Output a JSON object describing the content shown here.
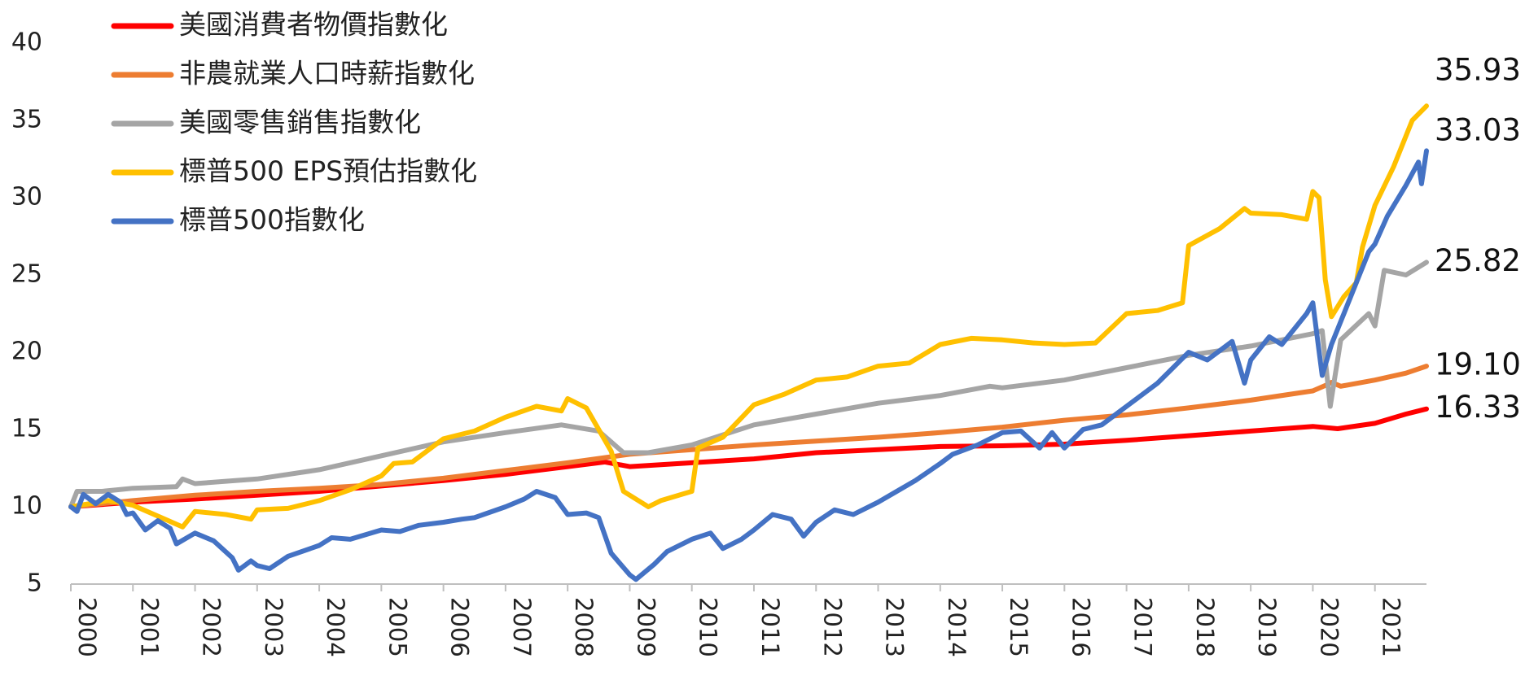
{
  "chart_data": {
    "type": "line",
    "title": "",
    "xlabel": "",
    "ylabel": "",
    "ylim": [
      5,
      40
    ],
    "y_ticks": [
      "5",
      "10",
      "15",
      "20",
      "25",
      "30",
      "35",
      "40"
    ],
    "x_ticks": [
      "2000",
      "2001",
      "2002",
      "2003",
      "2004",
      "2005",
      "2006",
      "2007",
      "2008",
      "2009",
      "2010",
      "2011",
      "2012",
      "2013",
      "2014",
      "2015",
      "2016",
      "2017",
      "2018",
      "2019",
      "2020",
      "2021"
    ],
    "grid": false,
    "legend_position": "top-left",
    "series": [
      {
        "name": "美國消費者物價指數化",
        "color": "#ff0000",
        "end_label": "16.33",
        "points": [
          [
            2000.0,
            10.0
          ],
          [
            2001.0,
            10.3
          ],
          [
            2002.0,
            10.5
          ],
          [
            2003.0,
            10.75
          ],
          [
            2004.0,
            11.0
          ],
          [
            2005.0,
            11.35
          ],
          [
            2006.0,
            11.7
          ],
          [
            2007.0,
            12.1
          ],
          [
            2008.0,
            12.6
          ],
          [
            2008.6,
            12.9
          ],
          [
            2009.0,
            12.6
          ],
          [
            2010.0,
            12.85
          ],
          [
            2011.0,
            13.1
          ],
          [
            2012.0,
            13.5
          ],
          [
            2013.0,
            13.7
          ],
          [
            2014.0,
            13.9
          ],
          [
            2015.0,
            13.95
          ],
          [
            2016.0,
            14.05
          ],
          [
            2017.0,
            14.3
          ],
          [
            2018.0,
            14.6
          ],
          [
            2019.0,
            14.9
          ],
          [
            2020.0,
            15.2
          ],
          [
            2020.4,
            15.05
          ],
          [
            2021.0,
            15.4
          ],
          [
            2021.5,
            16.0
          ],
          [
            2021.83,
            16.33
          ]
        ]
      },
      {
        "name": "非農就業人口時薪指數化",
        "color": "#ed7d31",
        "end_label": "19.10",
        "points": [
          [
            2000.0,
            10.0
          ],
          [
            2001.0,
            10.4
          ],
          [
            2002.0,
            10.75
          ],
          [
            2003.0,
            11.0
          ],
          [
            2004.0,
            11.2
          ],
          [
            2005.0,
            11.45
          ],
          [
            2006.0,
            11.85
          ],
          [
            2007.0,
            12.35
          ],
          [
            2008.0,
            12.85
          ],
          [
            2009.0,
            13.4
          ],
          [
            2010.0,
            13.7
          ],
          [
            2011.0,
            14.0
          ],
          [
            2012.0,
            14.25
          ],
          [
            2013.0,
            14.5
          ],
          [
            2014.0,
            14.8
          ],
          [
            2015.0,
            15.15
          ],
          [
            2016.0,
            15.6
          ],
          [
            2017.0,
            15.95
          ],
          [
            2018.0,
            16.4
          ],
          [
            2019.0,
            16.9
          ],
          [
            2020.0,
            17.5
          ],
          [
            2020.2,
            17.85
          ],
          [
            2020.3,
            18.05
          ],
          [
            2020.45,
            17.8
          ],
          [
            2021.0,
            18.2
          ],
          [
            2021.5,
            18.65
          ],
          [
            2021.83,
            19.1
          ]
        ]
      },
      {
        "name": "美國零售銷售指數化",
        "color": "#a5a5a5",
        "end_label": "25.82",
        "points": [
          [
            2000.0,
            10.0
          ],
          [
            2000.1,
            11.0
          ],
          [
            2000.5,
            11.0
          ],
          [
            2001.0,
            11.2
          ],
          [
            2001.7,
            11.3
          ],
          [
            2001.8,
            11.8
          ],
          [
            2002.0,
            11.5
          ],
          [
            2003.0,
            11.8
          ],
          [
            2004.0,
            12.4
          ],
          [
            2005.0,
            13.3
          ],
          [
            2006.0,
            14.2
          ],
          [
            2007.0,
            14.8
          ],
          [
            2007.9,
            15.3
          ],
          [
            2008.5,
            14.9
          ],
          [
            2008.9,
            13.5
          ],
          [
            2009.3,
            13.5
          ],
          [
            2010.0,
            14.0
          ],
          [
            2011.0,
            15.3
          ],
          [
            2012.0,
            16.0
          ],
          [
            2013.0,
            16.7
          ],
          [
            2014.0,
            17.2
          ],
          [
            2014.8,
            17.8
          ],
          [
            2015.0,
            17.7
          ],
          [
            2016.0,
            18.2
          ],
          [
            2017.0,
            19.0
          ],
          [
            2018.0,
            19.8
          ],
          [
            2019.0,
            20.4
          ],
          [
            2020.0,
            21.2
          ],
          [
            2020.15,
            21.4
          ],
          [
            2020.28,
            16.5
          ],
          [
            2020.45,
            20.8
          ],
          [
            2020.9,
            22.5
          ],
          [
            2021.0,
            21.7
          ],
          [
            2021.15,
            25.3
          ],
          [
            2021.5,
            25.0
          ],
          [
            2021.83,
            25.82
          ]
        ]
      },
      {
        "name": "標普500 EPS預估指數化",
        "color": "#ffc000",
        "end_label": "35.93",
        "points": [
          [
            2000.0,
            10.0
          ],
          [
            2000.6,
            10.4
          ],
          [
            2001.0,
            10.1
          ],
          [
            2001.8,
            8.7
          ],
          [
            2002.0,
            9.7
          ],
          [
            2002.5,
            9.5
          ],
          [
            2002.9,
            9.2
          ],
          [
            2003.0,
            9.8
          ],
          [
            2003.5,
            9.9
          ],
          [
            2004.0,
            10.4
          ],
          [
            2004.5,
            11.1
          ],
          [
            2005.0,
            12.0
          ],
          [
            2005.2,
            12.8
          ],
          [
            2005.5,
            12.9
          ],
          [
            2006.0,
            14.4
          ],
          [
            2006.5,
            14.9
          ],
          [
            2007.0,
            15.8
          ],
          [
            2007.5,
            16.5
          ],
          [
            2007.9,
            16.2
          ],
          [
            2008.0,
            17.0
          ],
          [
            2008.3,
            16.4
          ],
          [
            2008.7,
            13.6
          ],
          [
            2008.9,
            11.0
          ],
          [
            2009.3,
            10.0
          ],
          [
            2009.5,
            10.4
          ],
          [
            2010.0,
            11.0
          ],
          [
            2010.1,
            13.8
          ],
          [
            2010.5,
            14.5
          ],
          [
            2011.0,
            16.6
          ],
          [
            2011.5,
            17.3
          ],
          [
            2012.0,
            18.2
          ],
          [
            2012.5,
            18.4
          ],
          [
            2013.0,
            19.1
          ],
          [
            2013.5,
            19.3
          ],
          [
            2014.0,
            20.5
          ],
          [
            2014.5,
            20.9
          ],
          [
            2015.0,
            20.8
          ],
          [
            2015.5,
            20.6
          ],
          [
            2016.0,
            20.5
          ],
          [
            2016.5,
            20.6
          ],
          [
            2017.0,
            22.5
          ],
          [
            2017.5,
            22.7
          ],
          [
            2017.9,
            23.2
          ],
          [
            2018.0,
            26.9
          ],
          [
            2018.5,
            28.0
          ],
          [
            2018.9,
            29.3
          ],
          [
            2019.0,
            29.0
          ],
          [
            2019.5,
            28.9
          ],
          [
            2019.9,
            28.6
          ],
          [
            2020.0,
            30.4
          ],
          [
            2020.1,
            30.0
          ],
          [
            2020.2,
            24.7
          ],
          [
            2020.3,
            22.3
          ],
          [
            2020.5,
            23.6
          ],
          [
            2020.7,
            24.5
          ],
          [
            2020.8,
            26.8
          ],
          [
            2021.0,
            29.5
          ],
          [
            2021.3,
            32.0
          ],
          [
            2021.6,
            35.0
          ],
          [
            2021.83,
            35.93
          ]
        ]
      },
      {
        "name": "標普500指數化",
        "color": "#4472c4",
        "end_label": "33.03",
        "points": [
          [
            2000.0,
            10.0
          ],
          [
            2000.1,
            9.7
          ],
          [
            2000.2,
            10.8
          ],
          [
            2000.4,
            10.2
          ],
          [
            2000.6,
            10.8
          ],
          [
            2000.8,
            10.3
          ],
          [
            2000.9,
            9.5
          ],
          [
            2001.0,
            9.6
          ],
          [
            2001.2,
            8.5
          ],
          [
            2001.4,
            9.1
          ],
          [
            2001.6,
            8.6
          ],
          [
            2001.7,
            7.6
          ],
          [
            2002.0,
            8.3
          ],
          [
            2002.3,
            7.8
          ],
          [
            2002.6,
            6.7
          ],
          [
            2002.7,
            5.9
          ],
          [
            2002.9,
            6.5
          ],
          [
            2003.0,
            6.2
          ],
          [
            2003.2,
            6.0
          ],
          [
            2003.5,
            6.8
          ],
          [
            2004.0,
            7.5
          ],
          [
            2004.2,
            8.0
          ],
          [
            2004.5,
            7.9
          ],
          [
            2005.0,
            8.5
          ],
          [
            2005.3,
            8.4
          ],
          [
            2005.6,
            8.8
          ],
          [
            2006.0,
            9.0
          ],
          [
            2006.3,
            9.2
          ],
          [
            2006.5,
            9.3
          ],
          [
            2007.0,
            10.0
          ],
          [
            2007.3,
            10.5
          ],
          [
            2007.5,
            11.0
          ],
          [
            2007.8,
            10.6
          ],
          [
            2008.0,
            9.5
          ],
          [
            2008.3,
            9.6
          ],
          [
            2008.5,
            9.3
          ],
          [
            2008.7,
            7.0
          ],
          [
            2009.0,
            5.6
          ],
          [
            2009.1,
            5.3
          ],
          [
            2009.4,
            6.3
          ],
          [
            2009.6,
            7.1
          ],
          [
            2010.0,
            7.9
          ],
          [
            2010.3,
            8.3
          ],
          [
            2010.5,
            7.3
          ],
          [
            2010.8,
            7.9
          ],
          [
            2011.0,
            8.5
          ],
          [
            2011.3,
            9.5
          ],
          [
            2011.6,
            9.2
          ],
          [
            2011.8,
            8.1
          ],
          [
            2012.0,
            9.0
          ],
          [
            2012.3,
            9.8
          ],
          [
            2012.6,
            9.5
          ],
          [
            2013.0,
            10.3
          ],
          [
            2013.3,
            11.0
          ],
          [
            2013.6,
            11.7
          ],
          [
            2014.0,
            12.8
          ],
          [
            2014.2,
            13.4
          ],
          [
            2014.6,
            14.0
          ],
          [
            2015.0,
            14.8
          ],
          [
            2015.3,
            14.9
          ],
          [
            2015.6,
            13.8
          ],
          [
            2015.8,
            14.8
          ],
          [
            2016.0,
            13.8
          ],
          [
            2016.3,
            15.0
          ],
          [
            2016.6,
            15.3
          ],
          [
            2017.0,
            16.5
          ],
          [
            2017.5,
            18.0
          ],
          [
            2018.0,
            20.0
          ],
          [
            2018.3,
            19.5
          ],
          [
            2018.7,
            20.7
          ],
          [
            2018.9,
            18.0
          ],
          [
            2019.0,
            19.5
          ],
          [
            2019.3,
            21.0
          ],
          [
            2019.5,
            20.5
          ],
          [
            2019.9,
            22.5
          ],
          [
            2020.0,
            23.2
          ],
          [
            2020.15,
            18.5
          ],
          [
            2020.3,
            20.5
          ],
          [
            2020.5,
            22.5
          ],
          [
            2020.7,
            24.5
          ],
          [
            2020.9,
            26.5
          ],
          [
            2021.0,
            27.0
          ],
          [
            2021.2,
            28.8
          ],
          [
            2021.5,
            30.8
          ],
          [
            2021.7,
            32.3
          ],
          [
            2021.75,
            30.9
          ],
          [
            2021.83,
            33.03
          ]
        ]
      }
    ]
  }
}
